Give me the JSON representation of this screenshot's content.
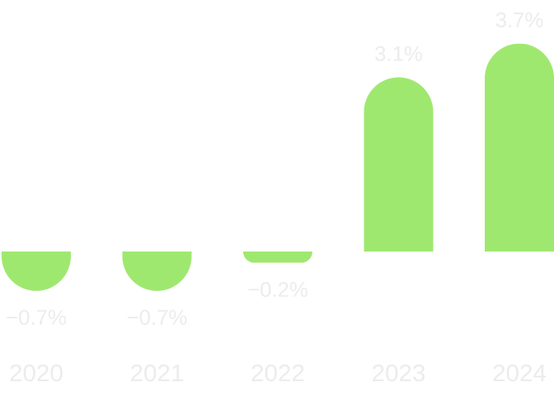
{
  "chart_data": {
    "type": "bar",
    "categories": [
      "2020",
      "2021",
      "2022",
      "2023",
      "2024"
    ],
    "values": [
      -0.7,
      -0.7,
      -0.2,
      3.1,
      3.7
    ],
    "value_labels": [
      "−0.7%",
      "−0.7%",
      "−0.2%",
      "3.1%",
      "3.7%"
    ],
    "color": "#9fe870"
  }
}
